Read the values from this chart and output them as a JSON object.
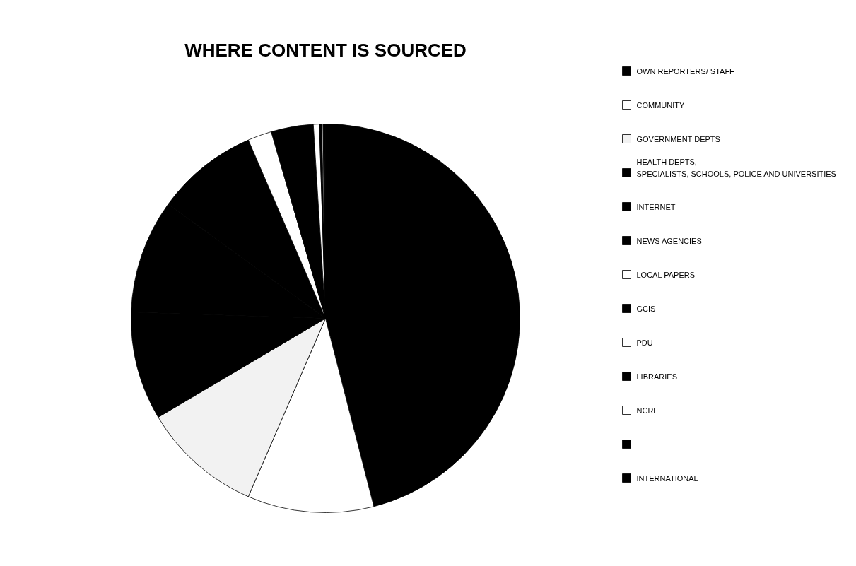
{
  "chart_data": {
    "type": "pie",
    "title": "WHERE CONTENT IS SOURCED",
    "categories": [
      "OWN REPORTERS/ STAFF",
      "COMMUNITY",
      "GOVERNMENT DEPTS",
      "HEALTH DEPTS, SPECIALISTS, SCHOOLS, POLICE AND UNIVERSITIES",
      "INTERNET",
      "NEWS AGENCIES",
      "LOCAL PAPERS",
      "GCIS",
      "PDU",
      "LIBRARIES",
      "NCRF",
      null,
      "INTERNATIONAL"
    ],
    "values": [
      46,
      10.5,
      10,
      9,
      9.5,
      8.5,
      2,
      3.5,
      0.5,
      0.2,
      0.1,
      0.1,
      0.1
    ],
    "colors": [
      "#000000",
      "#ffffff",
      "#f2f2f2",
      "#000000",
      "#000000",
      "#000000",
      "#ffffff",
      "#000000",
      "#ffffff",
      "#000000",
      "#ffffff",
      "#000000",
      "#000000"
    ],
    "legend": "right"
  }
}
